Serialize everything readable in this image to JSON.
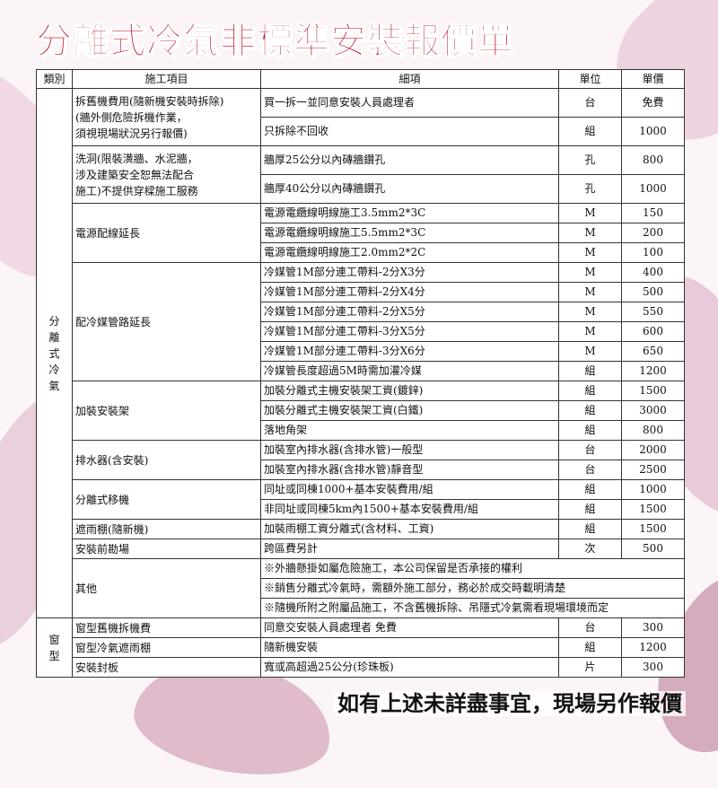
{
  "title": "分離式冷氣非標準安裝報價單",
  "headers": {
    "category": "類別",
    "item": "施工項目",
    "detail": "細項",
    "unit": "單位",
    "price": "單價"
  },
  "categories": [
    {
      "label": "分\n離\n式\n冷\n氣",
      "groups": [
        {
          "item": "拆舊機費用(隨新機安裝時拆除)\n(牆外側危險拆機作業，\n須視現場狀況另行報價)",
          "tall": true,
          "rows": [
            {
              "detail": "買一拆一並同意安裝人員處理者",
              "unit": "台",
              "price": "免費"
            },
            {
              "detail": "只拆除不回收",
              "unit": "組",
              "price": "1000"
            }
          ]
        },
        {
          "item": "洗洞(限裝潢牆、水泥牆，\n涉及建築安全恕無法配合\n施工)不提供穿樑施工服務",
          "tall": true,
          "rows": [
            {
              "detail": "牆厚25公分以內磚牆鑽孔",
              "unit": "孔",
              "price": "800"
            },
            {
              "detail": "牆厚40公分以內磚牆鑽孔",
              "unit": "孔",
              "price": "1000"
            }
          ]
        },
        {
          "item": "電源配線延長",
          "rows": [
            {
              "detail": "電源電纜線明線施工3.5mm2*3C",
              "unit": "M",
              "price": "150"
            },
            {
              "detail": "電源電纜線明線施工5.5mm2*3C",
              "unit": "M",
              "price": "200"
            },
            {
              "detail": "電源電纜線明線施工2.0mm2*2C",
              "unit": "M",
              "price": "100"
            }
          ]
        },
        {
          "item": "配冷媒管路延長",
          "rows": [
            {
              "detail": "冷媒管1M部分連工帶料-2分X3分",
              "unit": "M",
              "price": "400"
            },
            {
              "detail": "冷媒管1M部分連工帶料-2分X4分",
              "unit": "M",
              "price": "500"
            },
            {
              "detail": "冷媒管1M部分連工帶料-2分X5分",
              "unit": "M",
              "price": "550"
            },
            {
              "detail": "冷媒管1M部分連工帶料-3分X5分",
              "unit": "M",
              "price": "600"
            },
            {
              "detail": "冷媒管1M部分連工帶料-3分X6分",
              "unit": "M",
              "price": "650"
            },
            {
              "detail": "冷媒管長度超過5M時需加灌冷媒",
              "unit": "組",
              "price": "1200"
            }
          ]
        },
        {
          "item": "加裝安裝架",
          "rows": [
            {
              "detail": "加裝分離式主機安裝架工資(鍍鋅)",
              "unit": "組",
              "price": "1500"
            },
            {
              "detail": "加裝分離式主機安裝架工資(白鐵)",
              "unit": "組",
              "price": "3000"
            },
            {
              "detail": "落地角架",
              "unit": "組",
              "price": "800"
            }
          ]
        },
        {
          "item": "排水器(含安裝)",
          "rows": [
            {
              "detail": "加裝室內排水器(含排水管)一般型",
              "unit": "台",
              "price": "2000"
            },
            {
              "detail": "加裝室內排水器(含排水管)靜音型",
              "unit": "台",
              "price": "2500"
            }
          ]
        },
        {
          "item": "分離式移機",
          "rows": [
            {
              "detail": "同址或同棟1000+基本安裝費用/組",
              "unit": "組",
              "price": "1000"
            },
            {
              "detail": "非同址或同棟5km內1500+基本安裝費用/組",
              "unit": "組",
              "price": "1500"
            }
          ]
        },
        {
          "item": "遮雨棚(隨新機)",
          "rows": [
            {
              "detail": "加裝雨棚工資分離式(含材料、工資)",
              "unit": "組",
              "price": "1500"
            }
          ]
        },
        {
          "item": "安裝前勘場",
          "rows": [
            {
              "detail": "跨區費另計",
              "unit": "次",
              "price": "500"
            }
          ]
        },
        {
          "item": "其他",
          "rows": [
            {
              "note": "※外牆懸掛如屬危險施工，本公司保留是否承接的權利"
            },
            {
              "note": "※銷售分離式冷氣時，需額外施工部分，務必於成交時載明清楚"
            },
            {
              "note": "※隨機所附之附屬品施工，不含舊機拆除、吊隱式冷氣需看現場環境而定"
            }
          ]
        }
      ]
    },
    {
      "label": "窗\n型",
      "groups": [
        {
          "item": "窗型舊機拆機費",
          "rows": [
            {
              "detail": "同意交安裝人員處理者 免費",
              "unit": "台",
              "price": "300"
            }
          ]
        },
        {
          "item": "窗型冷氣遮雨棚",
          "rows": [
            {
              "detail": "隨新機安裝",
              "unit": "組",
              "price": "1200"
            }
          ]
        },
        {
          "item": "安裝封板",
          "rows": [
            {
              "detail": "寬或高超過25公分(珍珠板)",
              "unit": "片",
              "price": "300"
            }
          ]
        }
      ]
    }
  ],
  "footer": "如有上述未詳盡事宜，現場另作報價",
  "colors": {
    "title": "#c3162c",
    "background_floral": "#d9a6c4"
  }
}
